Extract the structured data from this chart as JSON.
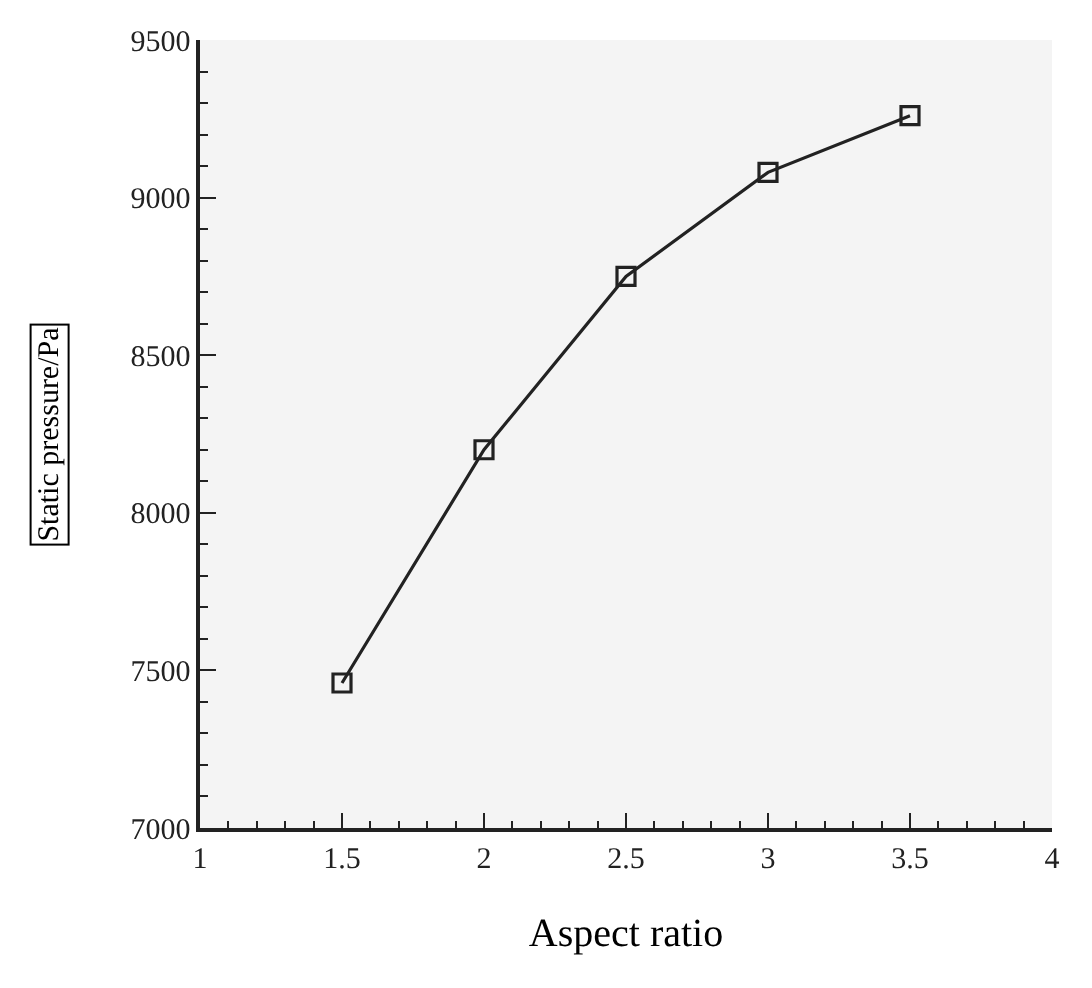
{
  "chart_data": {
    "type": "line",
    "xlabel": "Aspect ratio",
    "ylabel": "Static pressure/Pa",
    "x": [
      1.5,
      2,
      2.5,
      3,
      3.5
    ],
    "series": [
      {
        "color": "#222222",
        "values": [
          7460,
          8200,
          8750,
          9080,
          9260
        ]
      }
    ],
    "xlim": [
      1,
      4
    ],
    "xticks": [
      1,
      1.5,
      2,
      2.5,
      3,
      3.5,
      4
    ],
    "ylim": [
      7000,
      9500
    ],
    "yticks": [
      7000,
      7500,
      8000,
      8500,
      9000,
      9500
    ],
    "marker": "square",
    "line_style": "solid",
    "grid": false
  }
}
